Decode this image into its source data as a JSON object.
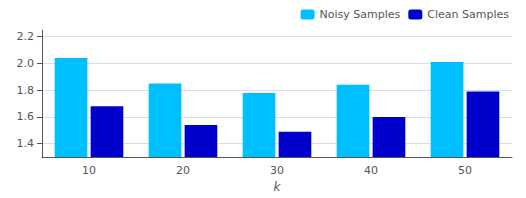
{
  "chart_data": {
    "type": "bar",
    "xlabel": "k",
    "categories": [
      "10",
      "20",
      "30",
      "40",
      "50"
    ],
    "series": [
      {
        "name": "Noisy Samples",
        "color": "#00BFFF",
        "values": [
          2.04,
          1.85,
          1.78,
          1.84,
          2.01
        ]
      },
      {
        "name": "Clean Samples",
        "color": "#0000CD",
        "values": [
          1.68,
          1.54,
          1.49,
          1.6,
          1.79
        ]
      }
    ],
    "ylim": [
      1.3,
      2.25
    ],
    "yticks": [
      1.4,
      1.6,
      1.8,
      {
        "value": 2,
        "label": "2.0"
      },
      2.2
    ],
    "grid": true,
    "legend": "upper right"
  }
}
